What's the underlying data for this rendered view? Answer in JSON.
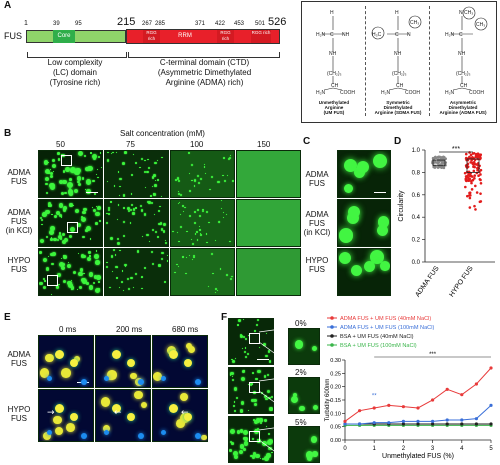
{
  "panels": {
    "A": "A",
    "B": "B",
    "C": "C",
    "D": "D",
    "E": "E",
    "F": "F"
  },
  "panelA": {
    "protein": "FUS",
    "positions": [
      "1",
      "39",
      "95",
      "215",
      "267",
      "285",
      "371",
      "422",
      "453",
      "501",
      "526"
    ],
    "domains": [
      {
        "name": "Core",
        "color": "#2fae4a"
      },
      {
        "name": "RGG rich",
        "color": "#e8202a"
      },
      {
        "name": "RRM",
        "color": "#e8202a"
      },
      {
        "name": "RGG rich",
        "color": "#e8202a"
      },
      {
        "name": "RGG rich",
        "color": "#e8202a"
      }
    ],
    "lc_label_1": "Low complexity",
    "lc_label_2": "(LC) domain",
    "lc_label_3": "(Tyrosine rich)",
    "ctd_label_1": "C-terminal domain (CTD)",
    "ctd_label_2": "(Asymmetric Dimethylated",
    "ctd_label_3": "Arginine (ADMA) rich)",
    "structures": [
      {
        "l1": "Unmethylated",
        "l2": "Arginine",
        "l3": "(UM FUS)"
      },
      {
        "l1": "Symmetric",
        "l2": "Dimethylated",
        "l3": "Arginine (SDMA FUS)"
      },
      {
        "l1": "Asymmetric",
        "l2": "Dimethylated",
        "l3": "Arginine (ADMA FUS)"
      }
    ]
  },
  "panelB": {
    "title": "Salt concentration (mM)",
    "cols": [
      "50",
      "75",
      "100",
      "150"
    ],
    "rows": [
      {
        "l1": "ADMA",
        "l2": "FUS",
        "l3": ""
      },
      {
        "l1": "ADMA",
        "l2": "FUS",
        "l3": "(in KCl)"
      },
      {
        "l1": "HYPO",
        "l2": "FUS",
        "l3": ""
      }
    ]
  },
  "panelC": {
    "rows": [
      {
        "l1": "ADMA",
        "l2": "FUS",
        "l3": ""
      },
      {
        "l1": "ADMA",
        "l2": "FUS",
        "l3": "(in KCl)"
      },
      {
        "l1": "HYPO",
        "l2": "FUS",
        "l3": ""
      }
    ]
  },
  "panelD": {
    "ylabel": "Circularity",
    "yticks": [
      "1.0",
      "0.8",
      "0.6",
      "0.4",
      "0.2",
      "0.0"
    ],
    "categories": [
      "ADMA FUS",
      "HYPO FUS"
    ],
    "significance": "***"
  },
  "panelE": {
    "times": [
      "0 ms",
      "200 ms",
      "680 ms"
    ],
    "rows": [
      {
        "l1": "ADMA",
        "l2": "FUS"
      },
      {
        "l1": "HYPO",
        "l2": "FUS"
      }
    ]
  },
  "panelF": {
    "insets": [
      "0%",
      "2%",
      "5%"
    ],
    "xlabel": "Unmethylated FUS (%)",
    "ylabel": "Turbidity 600nm",
    "yticks": [
      "0.30",
      "0.25",
      "0.20",
      "0.15",
      "0.10",
      "0.05",
      "0.00"
    ],
    "xticks": [
      "0",
      "1",
      "2",
      "3",
      "4",
      "5"
    ],
    "sig_small": "**",
    "sig_large": "***"
  },
  "chart_data": {
    "type": "line",
    "xlabel": "Unmethylated FUS (%)",
    "ylabel": "Turbidity 600nm",
    "ylim": [
      0,
      0.3
    ],
    "xlim": [
      0,
      5
    ],
    "legend_position": "top",
    "series": [
      {
        "name": "ADMA FUS + UM FUS (40mM NaCl)",
        "color": "#e83a3a",
        "x": [
          0,
          0.5,
          1,
          1.5,
          2,
          2.5,
          3,
          3.5,
          4,
          4.5,
          5
        ],
        "y": [
          0.07,
          0.11,
          0.12,
          0.13,
          0.125,
          0.12,
          0.15,
          0.19,
          0.17,
          0.21,
          0.27
        ]
      },
      {
        "name": "ADMA FUS + UM FUS (100mM NaCl)",
        "color": "#3a6fd8",
        "x": [
          0,
          0.5,
          1,
          1.5,
          2,
          2.5,
          3,
          3.5,
          4,
          4.5,
          5
        ],
        "y": [
          0.06,
          0.06,
          0.065,
          0.065,
          0.07,
          0.07,
          0.07,
          0.075,
          0.075,
          0.08,
          0.13
        ]
      },
      {
        "name": "BSA + UM FUS (40mM NaCl)",
        "color": "#222222",
        "x": [
          0,
          0.5,
          1,
          1.5,
          2,
          2.5,
          3,
          3.5,
          4,
          4.5,
          5
        ],
        "y": [
          0.06,
          0.06,
          0.06,
          0.06,
          0.06,
          0.06,
          0.06,
          0.06,
          0.06,
          0.06,
          0.06
        ]
      },
      {
        "name": "BSA + UM FUS (100mM NaCl)",
        "color": "#39b54a",
        "x": [
          0,
          0.5,
          1,
          1.5,
          2,
          2.5,
          3,
          3.5,
          4,
          4.5,
          5
        ],
        "y": [
          0.055,
          0.055,
          0.055,
          0.055,
          0.055,
          0.055,
          0.055,
          0.055,
          0.055,
          0.055,
          0.055
        ]
      }
    ]
  }
}
